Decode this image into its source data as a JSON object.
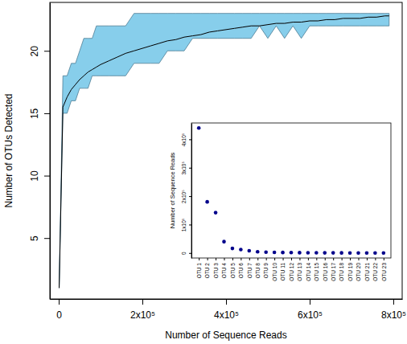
{
  "chart_data": [
    {
      "type": "line",
      "x_label": "Number of Sequence Reads",
      "y_label": "Number of OTUs Detected",
      "x": [
        1000,
        10000,
        20000,
        30000,
        40000,
        50000,
        60000,
        70000,
        80000,
        90000,
        100000,
        120000,
        140000,
        160000,
        180000,
        200000,
        220000,
        240000,
        260000,
        280000,
        300000,
        320000,
        340000,
        360000,
        380000,
        400000,
        420000,
        440000,
        460000,
        480000,
        500000,
        520000,
        540000,
        560000,
        580000,
        600000,
        620000,
        640000,
        660000,
        680000,
        700000,
        720000,
        740000,
        760000,
        780000,
        790000
      ],
      "series": [
        {
          "type": "band",
          "color": "#87ceeb",
          "lower": [
            1,
            15,
            15,
            16,
            16,
            17,
            17,
            17,
            18,
            18,
            18,
            18,
            18,
            18,
            19,
            19,
            19,
            19,
            20,
            20,
            20,
            21,
            21,
            21,
            21,
            21,
            21,
            21,
            21,
            22,
            21,
            22,
            21,
            22,
            21,
            22,
            22,
            22,
            22,
            22,
            22,
            22,
            22,
            22,
            22,
            22
          ],
          "upper": [
            1,
            18,
            18,
            19,
            19,
            20,
            21,
            21,
            21,
            22,
            22,
            22,
            22,
            22,
            23,
            23,
            23,
            23,
            23,
            23,
            23,
            23,
            23,
            23,
            23,
            23,
            23,
            23,
            23,
            23,
            23,
            23,
            23,
            23,
            23,
            23,
            23,
            23,
            23,
            23,
            23,
            23,
            23,
            23,
            23,
            23
          ]
        },
        {
          "type": "line",
          "color": "#000000",
          "values": [
            1,
            15.5,
            16.3,
            16.9,
            17.3,
            17.7,
            18.0,
            18.3,
            18.5,
            18.7,
            18.9,
            19.2,
            19.5,
            19.8,
            20.0,
            20.2,
            20.4,
            20.6,
            20.8,
            20.9,
            21.1,
            21.2,
            21.3,
            21.5,
            21.6,
            21.7,
            21.8,
            21.9,
            22.0,
            22.0,
            22.1,
            22.2,
            22.2,
            22.3,
            22.3,
            22.4,
            22.4,
            22.5,
            22.5,
            22.6,
            22.6,
            22.6,
            22.7,
            22.7,
            22.8,
            22.8
          ]
        }
      ],
      "xlim": [
        -21200,
        821200
      ],
      "xticks": [
        0,
        {
          "value": 200000,
          "label": "2x10⁵"
        },
        {
          "value": 400000,
          "label": "4x10⁵"
        },
        {
          "value": 600000,
          "label": "6x10⁵"
        },
        {
          "value": 800000,
          "label": "8x10⁵"
        }
      ],
      "ylim": [
        0.12,
        23.88
      ],
      "yticks": [
        5,
        10,
        15,
        20
      ],
      "grid": false
    },
    {
      "type": "scatter",
      "y_label": "Number of Sequence Reads",
      "categories": [
        "OTU 1",
        "OTU 2",
        "OTU 3",
        "OTU 4",
        "OTU 5",
        "OTU 6",
        "OTU 7",
        "OTU 8",
        "OTU 9",
        "OTU 10",
        "OTU 11",
        "OTU 12",
        "OTU 13",
        "OTU 14",
        "OTU 15",
        "OTU 16",
        "OTU 17",
        "OTU 18",
        "OTU 19",
        "OTU 20",
        "OTU 21",
        "OTU 22",
        "OTU 23"
      ],
      "values": [
        440000,
        180000,
        142000,
        40000,
        16000,
        12000,
        8000,
        4500,
        3000,
        2200,
        1800,
        1400,
        1100,
        900,
        700,
        550,
        450,
        350,
        280,
        200,
        150,
        100,
        60
      ],
      "color": "#00008b",
      "marker": "circle",
      "ylim": [
        -17600,
        457600
      ],
      "yticks": [
        0,
        {
          "value": 100000,
          "label": "1x10⁵"
        },
        {
          "value": 200000,
          "label": "2x10⁵"
        },
        {
          "value": 300000,
          "label": "3x10⁵"
        },
        {
          "value": 400000,
          "label": "4x10⁵"
        }
      ],
      "grid": false
    }
  ]
}
